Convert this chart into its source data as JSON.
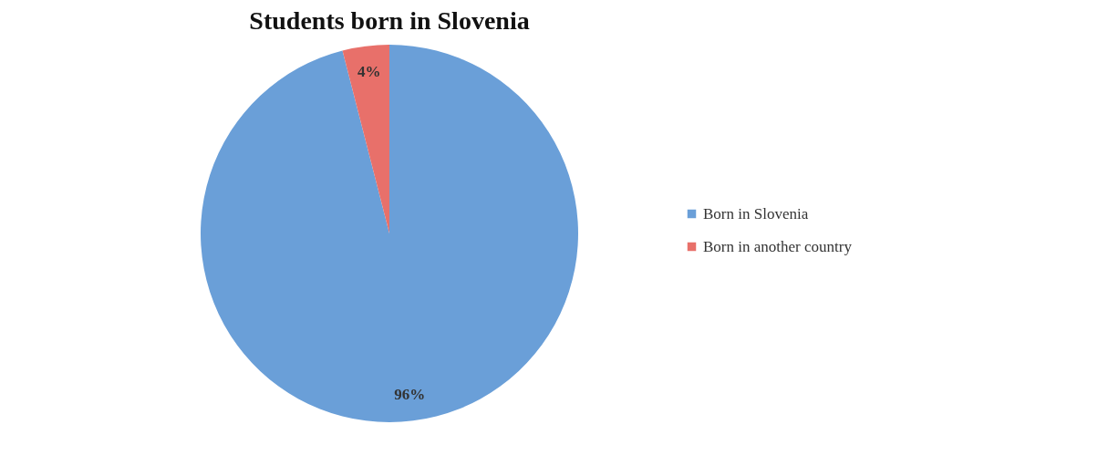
{
  "chart_data": {
    "type": "pie",
    "title": "Students born in Slovenia",
    "categories": [
      "Born in Slovenia",
      "Born in another country"
    ],
    "values": [
      96,
      4
    ],
    "colors": [
      "#6a9fd8",
      "#e8706a"
    ],
    "value_labels": [
      "96%",
      "4%"
    ],
    "legend": "right"
  }
}
